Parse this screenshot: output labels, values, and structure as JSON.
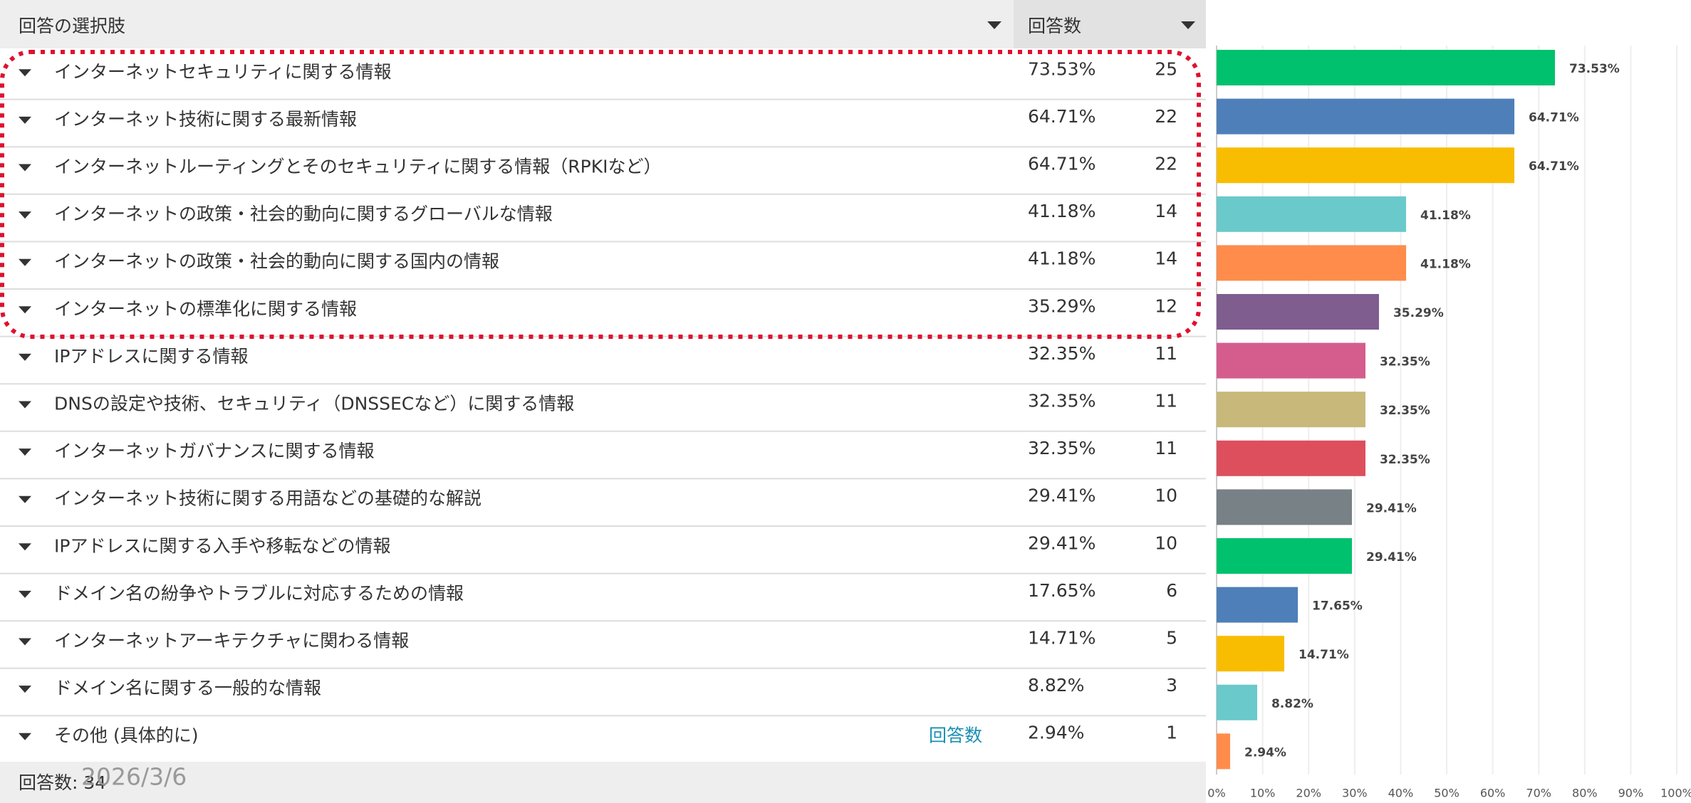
{
  "header": {
    "choices": "回答の選択肢",
    "responses": "回答数"
  },
  "table": {
    "counts": [
      25,
      22,
      22,
      14,
      14,
      12,
      11,
      11,
      11,
      10,
      10,
      6,
      5,
      3,
      1
    ],
    "link": "回答数"
  },
  "footer": {
    "total": "回答数: 34",
    "date": "2026/3/6"
  },
  "chart_data": {
    "type": "bar",
    "orientation": "horizontal",
    "categories": [
      "インターネットセキュリティに関する情報",
      "インターネット技術に関する最新情報",
      "インターネットルーティングとそのセキュリティに関する情報（RPKIなど）",
      "インターネットの政策・社会的動向に関するグローバルな情報",
      "インターネットの政策・社会的動向に関する国内の情報",
      "インターネットの標準化に関する情報",
      "IPアドレスに関する情報",
      "DNSの設定や技術、セキュリティ（DNSSECなど）に関する情報",
      "インターネットガバナンスに関する情報",
      "インターネット技術に関する用語などの基礎的な解説",
      "IPアドレスに関する入手や移転などの情報",
      "ドメイン名の紛争やトラブルに対応するための情報",
      "インターネットアーキテクチャに関わる情報",
      "ドメイン名に関する一般的な情報",
      "その他 (具体的に)"
    ],
    "values": [
      73.53,
      64.71,
      64.71,
      41.18,
      41.18,
      35.29,
      32.35,
      32.35,
      32.35,
      29.41,
      29.41,
      17.65,
      14.71,
      8.82,
      2.94
    ],
    "value_labels": [
      "73.53%",
      "64.71%",
      "64.71%",
      "41.18%",
      "41.18%",
      "35.29%",
      "32.35%",
      "32.35%",
      "32.35%",
      "29.41%",
      "29.41%",
      "17.65%",
      "14.71%",
      "8.82%",
      "2.94%"
    ],
    "colors": [
      "#00c16e",
      "#4e7fb9",
      "#f8bd00",
      "#6ac9cb",
      "#ff8c4b",
      "#7f5d8f",
      "#d45d8e",
      "#c8b87a",
      "#dd4f5d",
      "#778186",
      "#00c16e",
      "#4e7fb9",
      "#f8bd00",
      "#6ac9cb",
      "#ff8c4b"
    ],
    "xlim": [
      0,
      100
    ],
    "xticks": [
      {
        "value": 0,
        "label": "0%"
      },
      {
        "value": 10,
        "label": "10%"
      },
      {
        "value": 20,
        "label": "20%"
      },
      {
        "value": 30,
        "label": "30%"
      },
      {
        "value": 40,
        "label": "40%"
      },
      {
        "value": 50,
        "label": "50%"
      },
      {
        "value": 60,
        "label": "60%"
      },
      {
        "value": 70,
        "label": "70%"
      },
      {
        "value": 80,
        "label": "80%"
      },
      {
        "value": 90,
        "label": "90%"
      },
      {
        "value": 100,
        "label": "100%"
      }
    ],
    "grid": true
  }
}
